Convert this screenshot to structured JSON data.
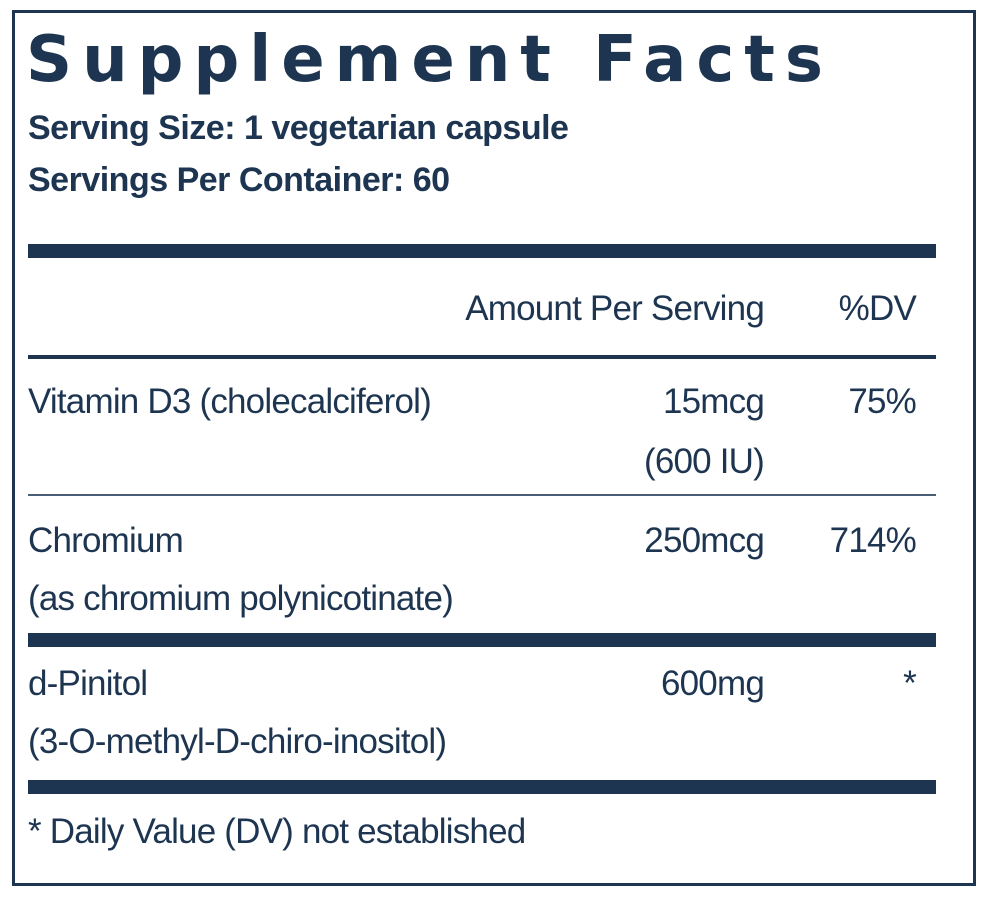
{
  "title": "Supplement Facts",
  "serving_size": "Serving Size: 1 vegetarian capsule",
  "servings_per_container": "Servings Per Container: 60",
  "header": {
    "amount": "Amount Per Serving",
    "dv": "%DV"
  },
  "rows": [
    {
      "name": "Vitamin D3 (cholecalciferol)",
      "name_sub": "",
      "amount": "15mcg",
      "amount_sub": "(600 IU)",
      "dv": "75%"
    },
    {
      "name": "Chromium",
      "name_sub": "(as chromium polynicotinate)",
      "amount": "250mcg",
      "amount_sub": "",
      "dv": "714%"
    },
    {
      "name": "d-Pinitol",
      "name_sub": "(3-O-methyl-D-chiro-inositol)",
      "amount": "600mg",
      "amount_sub": "",
      "dv": "*"
    }
  ],
  "footnote": "* Daily Value (DV) not established",
  "colors": {
    "ink": "#1d3550"
  }
}
